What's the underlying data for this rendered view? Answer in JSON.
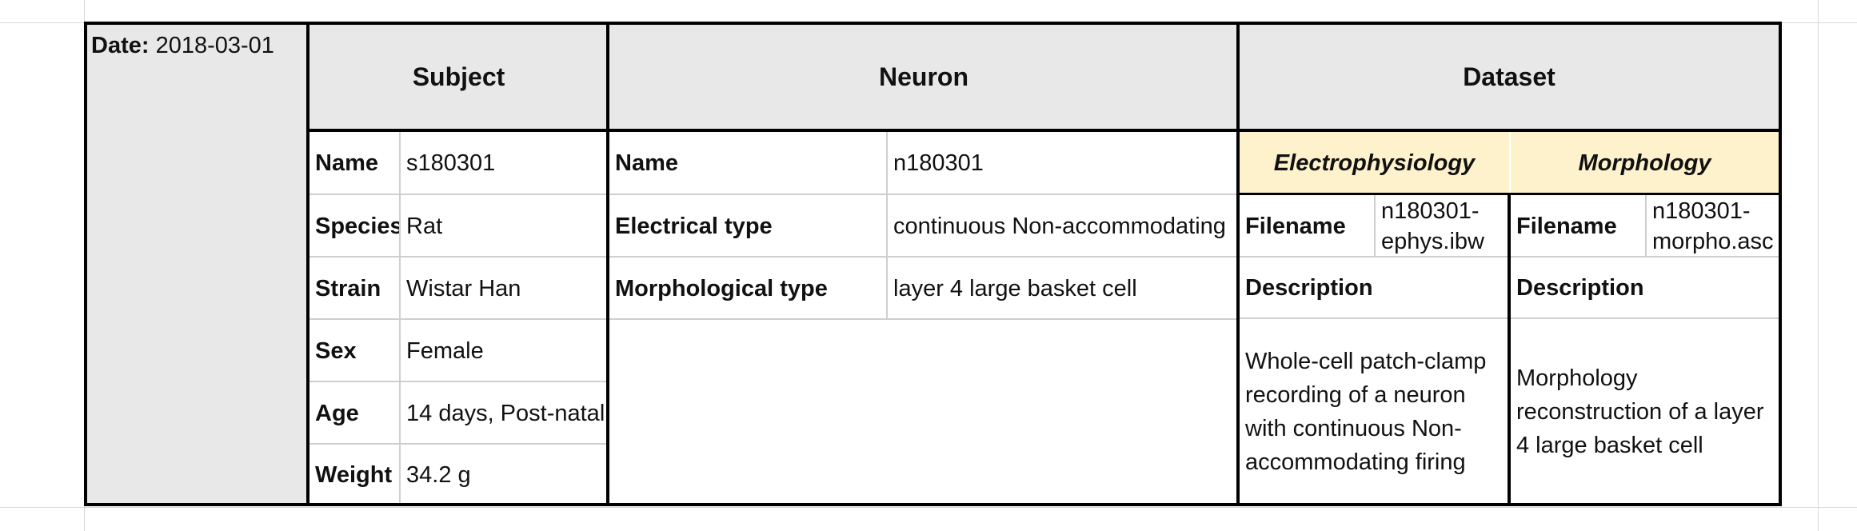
{
  "date": {
    "label": "Date:",
    "value": "2018-03-01"
  },
  "headers": {
    "subject": "Subject",
    "neuron": "Neuron",
    "dataset": "Dataset"
  },
  "subject": {
    "rows": [
      {
        "label": "Name",
        "value": "s180301"
      },
      {
        "label": "Species",
        "value": "Rat"
      },
      {
        "label": "Strain",
        "value": "Wistar Han"
      },
      {
        "label": "Sex",
        "value": "Female"
      },
      {
        "label": "Age",
        "value": "14 days, Post-natal"
      },
      {
        "label": "Weight",
        "value": "34.2 g"
      }
    ]
  },
  "neuron": {
    "rows": [
      {
        "label": "Name",
        "value": "n180301"
      },
      {
        "label": "Electrical type",
        "value": "continuous Non-accommodating"
      },
      {
        "label": "Morphological type",
        "value": "layer 4 large basket cell"
      }
    ]
  },
  "dataset": {
    "electrophysiology": {
      "title": "Electrophysiology",
      "filename_label": "Filename",
      "filename_line1": "n180301-",
      "filename_line2": "ephys.ibw",
      "description_label": "Description",
      "description": "Whole-cell patch-clamp recording of a neuron with continuous Non-accommodating firing"
    },
    "morphology": {
      "title": "Morphology",
      "filename_label": "Filename",
      "filename_line1": "n180301-",
      "filename_line2": "morpho.asc",
      "description_label": "Description",
      "description": "Morphology reconstruction of a layer 4 large basket cell"
    }
  },
  "colors": {
    "header_bg": "#e8e8e8",
    "dataset_sub_bg": "#fdf2cc",
    "border": "#000000"
  }
}
